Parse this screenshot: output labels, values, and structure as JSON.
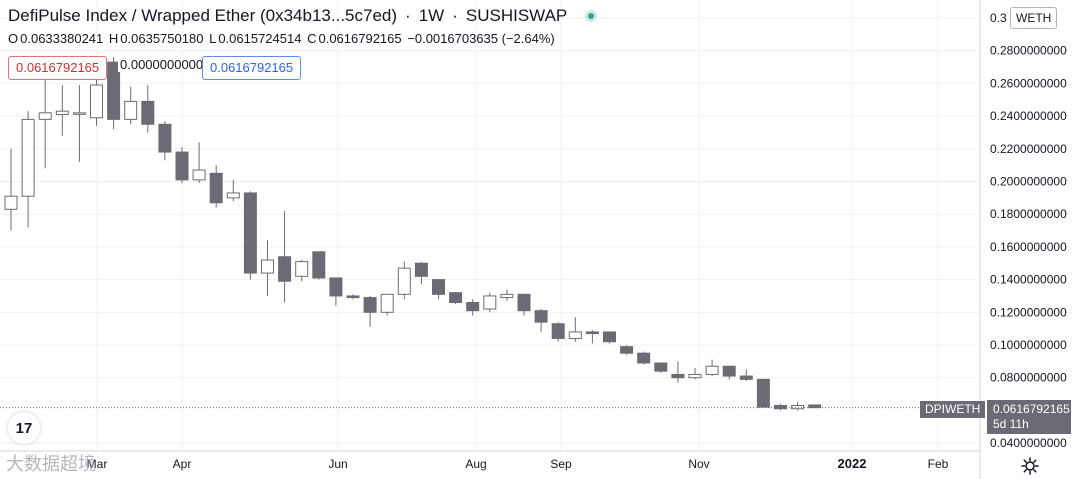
{
  "header": {
    "symbol_title": "DefiPulse Index / Wrapped Ether (0x34b13...5c7ed)",
    "interval": "1W",
    "exchange": "SUSHISWAP",
    "ohlc": {
      "open_label": "O",
      "open": "0.0633380241",
      "high_label": "H",
      "high": "0.0635750180",
      "low_label": "L",
      "low": "0.0615724514",
      "close_label": "C",
      "close": "0.0616792165",
      "change": "−0.0016703635 (−2.64%)"
    }
  },
  "price_inputs": {
    "sell_price": "0.0616792165",
    "spread": "0.0000000000",
    "buy_price": "0.0616792165"
  },
  "price_axis": {
    "currency": "WETH",
    "ticks": [
      "0.3",
      "0.2800000000",
      "0.2600000000",
      "0.2400000000",
      "0.2200000000",
      "0.2000000000",
      "0.1800000000",
      "0.1600000000",
      "0.1400000000",
      "0.1200000000",
      "0.1000000000",
      "0.0800000000",
      "0.0400000000"
    ]
  },
  "last_price": {
    "symbol": "DPIWETH",
    "price": "0.0616792165",
    "countdown": "5d 11h"
  },
  "time_axis": {
    "labels": [
      "Mar",
      "Apr",
      "Jun",
      "Aug",
      "Sep",
      "Nov",
      "2022",
      "Feb"
    ]
  },
  "logo_text": "17",
  "watermark_text": "大数据超境",
  "colors": {
    "up_body": "#ffffff",
    "down_body": "#6b6b75",
    "wick": "#6b6b75",
    "grid": "#eef0f3",
    "accent_blue": "#2962ff",
    "accent_red": "#d32f2f"
  },
  "chart_data": {
    "type": "candlestick",
    "interval": "1W",
    "ylim": [
      0.0375,
      0.3058
    ],
    "y_ticks": [
      0.3,
      0.28,
      0.26,
      0.24,
      0.22,
      0.2,
      0.18,
      0.16,
      0.14,
      0.12,
      0.1,
      0.08,
      0.04
    ],
    "last_price": 0.0616792165,
    "candles": [
      {
        "o": 0.183,
        "h": 0.22,
        "l": 0.17,
        "c": 0.191
      },
      {
        "o": 0.191,
        "h": 0.243,
        "l": 0.172,
        "c": 0.238
      },
      {
        "o": 0.238,
        "h": 0.263,
        "l": 0.208,
        "c": 0.242
      },
      {
        "o": 0.241,
        "h": 0.259,
        "l": 0.228,
        "c": 0.243
      },
      {
        "o": 0.242,
        "h": 0.259,
        "l": 0.212,
        "c": 0.242
      },
      {
        "o": 0.239,
        "h": 0.262,
        "l": 0.234,
        "c": 0.259
      },
      {
        "o": 0.273,
        "h": 0.276,
        "l": 0.232,
        "c": 0.238
      },
      {
        "o": 0.238,
        "h": 0.258,
        "l": 0.235,
        "c": 0.249
      },
      {
        "o": 0.249,
        "h": 0.259,
        "l": 0.23,
        "c": 0.235
      },
      {
        "o": 0.235,
        "h": 0.237,
        "l": 0.213,
        "c": 0.218
      },
      {
        "o": 0.218,
        "h": 0.221,
        "l": 0.199,
        "c": 0.201
      },
      {
        "o": 0.201,
        "h": 0.224,
        "l": 0.199,
        "c": 0.207
      },
      {
        "o": 0.205,
        "h": 0.21,
        "l": 0.184,
        "c": 0.187
      },
      {
        "o": 0.19,
        "h": 0.201,
        "l": 0.188,
        "c": 0.193
      },
      {
        "o": 0.193,
        "h": 0.194,
        "l": 0.14,
        "c": 0.144
      },
      {
        "o": 0.144,
        "h": 0.164,
        "l": 0.13,
        "c": 0.152
      },
      {
        "o": 0.154,
        "h": 0.182,
        "l": 0.126,
        "c": 0.139
      },
      {
        "o": 0.142,
        "h": 0.152,
        "l": 0.139,
        "c": 0.151
      },
      {
        "o": 0.157,
        "h": 0.157,
        "l": 0.14,
        "c": 0.141
      },
      {
        "o": 0.141,
        "h": 0.141,
        "l": 0.124,
        "c": 0.13
      },
      {
        "o": 0.13,
        "h": 0.131,
        "l": 0.128,
        "c": 0.129
      },
      {
        "o": 0.129,
        "h": 0.13,
        "l": 0.111,
        "c": 0.12
      },
      {
        "o": 0.12,
        "h": 0.131,
        "l": 0.118,
        "c": 0.131
      },
      {
        "o": 0.131,
        "h": 0.151,
        "l": 0.128,
        "c": 0.147
      },
      {
        "o": 0.15,
        "h": 0.151,
        "l": 0.137,
        "c": 0.142
      },
      {
        "o": 0.14,
        "h": 0.14,
        "l": 0.128,
        "c": 0.131
      },
      {
        "o": 0.132,
        "h": 0.132,
        "l": 0.125,
        "c": 0.126
      },
      {
        "o": 0.126,
        "h": 0.128,
        "l": 0.118,
        "c": 0.121
      },
      {
        "o": 0.122,
        "h": 0.132,
        "l": 0.12,
        "c": 0.13
      },
      {
        "o": 0.129,
        "h": 0.134,
        "l": 0.127,
        "c": 0.131
      },
      {
        "o": 0.131,
        "h": 0.131,
        "l": 0.118,
        "c": 0.121
      },
      {
        "o": 0.121,
        "h": 0.122,
        "l": 0.108,
        "c": 0.114
      },
      {
        "o": 0.113,
        "h": 0.114,
        "l": 0.102,
        "c": 0.104
      },
      {
        "o": 0.104,
        "h": 0.117,
        "l": 0.102,
        "c": 0.108
      },
      {
        "o": 0.108,
        "h": 0.109,
        "l": 0.101,
        "c": 0.107
      },
      {
        "o": 0.108,
        "h": 0.108,
        "l": 0.101,
        "c": 0.102
      },
      {
        "o": 0.099,
        "h": 0.1,
        "l": 0.094,
        "c": 0.095
      },
      {
        "o": 0.095,
        "h": 0.096,
        "l": 0.088,
        "c": 0.089
      },
      {
        "o": 0.089,
        "h": 0.089,
        "l": 0.083,
        "c": 0.084
      },
      {
        "o": 0.082,
        "h": 0.09,
        "l": 0.077,
        "c": 0.08
      },
      {
        "o": 0.08,
        "h": 0.086,
        "l": 0.079,
        "c": 0.082
      },
      {
        "o": 0.082,
        "h": 0.091,
        "l": 0.081,
        "c": 0.087
      },
      {
        "o": 0.087,
        "h": 0.087,
        "l": 0.079,
        "c": 0.081
      },
      {
        "o": 0.081,
        "h": 0.085,
        "l": 0.078,
        "c": 0.079
      },
      {
        "o": 0.079,
        "h": 0.079,
        "l": 0.062,
        "c": 0.062
      },
      {
        "o": 0.063,
        "h": 0.064,
        "l": 0.06,
        "c": 0.061
      },
      {
        "o": 0.061,
        "h": 0.065,
        "l": 0.06,
        "c": 0.063
      },
      {
        "o": 0.0633380241,
        "h": 0.063575018,
        "l": 0.0615724514,
        "c": 0.0616792165
      }
    ]
  }
}
